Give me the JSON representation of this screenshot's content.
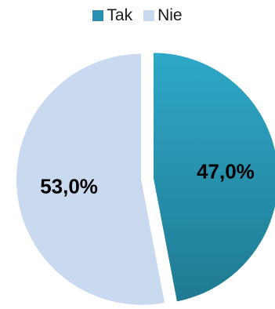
{
  "chart_data": {
    "type": "pie",
    "categories": [
      "Tak",
      "Nie"
    ],
    "values": [
      47.0,
      53.0
    ],
    "data_labels": [
      "47,0%",
      "53,0%"
    ],
    "colors": [
      "#2a8fb0",
      "#c9d9ef"
    ],
    "legend_position": "top"
  }
}
